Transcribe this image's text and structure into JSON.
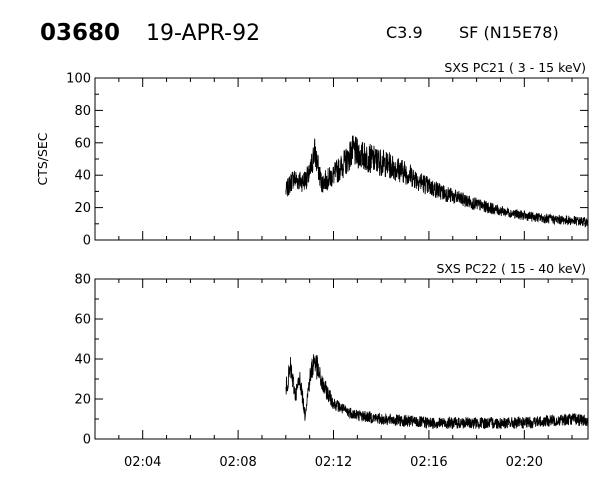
{
  "header": {
    "event_id": "03680",
    "date": "19-APR-92",
    "goes_class": "C3.9",
    "flare_info": "SF (N15E78)"
  },
  "chart_data": [
    {
      "type": "line",
      "title": "SXS PC21  (  3 - 15 keV)",
      "ylabel": "CTS/SEC",
      "xlabel": "",
      "ylim": [
        0,
        100
      ],
      "yticks": [
        0,
        20,
        40,
        60,
        80,
        100
      ],
      "xlim_minutes": [
        2.0,
        22.67
      ],
      "xticks": [
        "02:04",
        "02:08",
        "02:12",
        "02:16",
        "02:20"
      ],
      "xtick_minutes": [
        4,
        8,
        12,
        16,
        20
      ],
      "data_start_minute": 10.0,
      "grid": false,
      "series": [
        {
          "x_minutes": [
            10.0,
            10.3,
            10.7,
            11.0,
            11.2,
            11.5,
            12.0,
            12.5,
            12.8,
            13.2,
            14.0,
            15.0,
            16.0,
            17.0,
            18.0,
            19.0,
            20.0,
            21.0,
            22.0,
            22.67
          ],
          "values": [
            30,
            38,
            36,
            40,
            55,
            35,
            40,
            48,
            55,
            52,
            48,
            42,
            33,
            27,
            22,
            18,
            15,
            13,
            12,
            11
          ]
        }
      ]
    },
    {
      "type": "line",
      "title": "SXS PC22  ( 15 - 40 keV)",
      "ylabel": "",
      "xlabel": "",
      "ylim": [
        0,
        80
      ],
      "yticks": [
        0,
        20,
        40,
        60,
        80
      ],
      "xlim_minutes": [
        2.0,
        22.67
      ],
      "xticks": [
        "02:04",
        "02:08",
        "02:12",
        "02:16",
        "02:20"
      ],
      "xtick_minutes": [
        4,
        8,
        12,
        16,
        20
      ],
      "data_start_minute": 10.0,
      "grid": false,
      "series": [
        {
          "x_minutes": [
            10.0,
            10.2,
            10.4,
            10.6,
            10.8,
            11.0,
            11.2,
            11.5,
            12.0,
            12.5,
            13.0,
            14.0,
            15.0,
            16.0,
            17.0,
            18.0,
            19.0,
            20.0,
            21.0,
            22.0,
            22.67
          ],
          "values": [
            25,
            35,
            22,
            30,
            12,
            30,
            40,
            28,
            18,
            14,
            12,
            10,
            9,
            8,
            8,
            8,
            8,
            8,
            9,
            10,
            9
          ]
        }
      ]
    }
  ]
}
